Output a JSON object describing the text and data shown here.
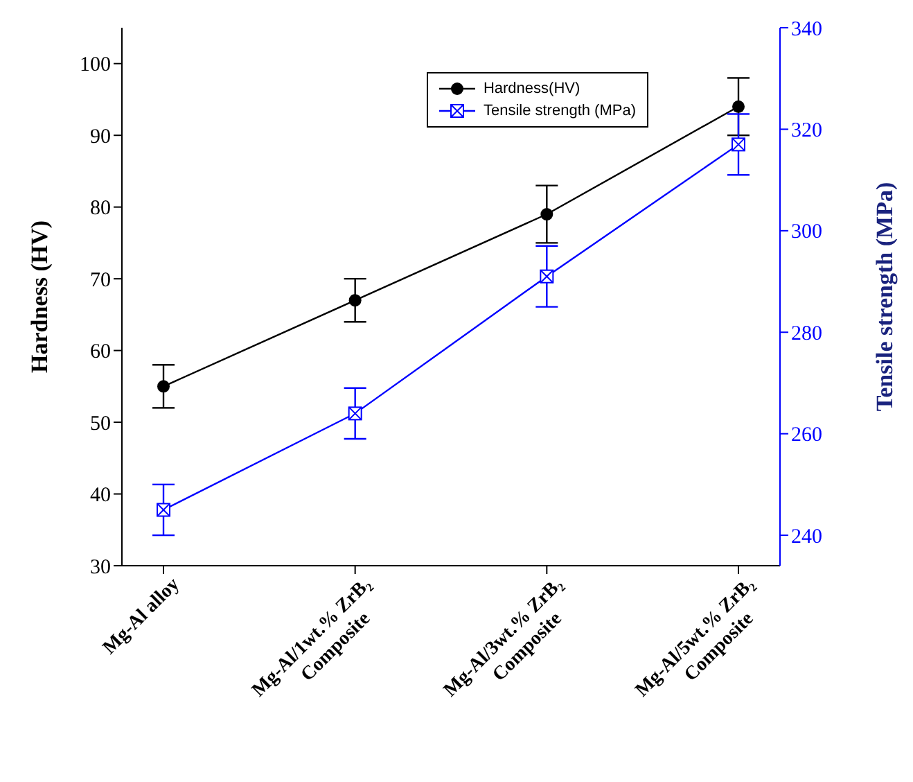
{
  "chart_data": {
    "type": "line",
    "ylabel": "Hardness (HV)",
    "y2label": "Tensile strength (MPa)",
    "categories": [
      "Mg-Al alloy",
      "Mg-Al/1wt.% ZrB₂\nComposite",
      "Mg-Al/3wt.% ZrB₂\nComposite",
      "Mg-Al/5wt.% ZrB₂\nComposite"
    ],
    "series": [
      {
        "name": "Hardness(HV)",
        "color": "#000000",
        "marker": "circle",
        "values": [
          55,
          67,
          79,
          94
        ],
        "errors": [
          3,
          3,
          4,
          4
        ]
      },
      {
        "name": "Tensile strength (MPa)",
        "color": "#0000ff",
        "marker": "square",
        "axis": "y2",
        "values": [
          245,
          264,
          291,
          317
        ],
        "errors": [
          5,
          5,
          6,
          6
        ]
      }
    ],
    "ylim": [
      30,
      105
    ],
    "yticks": [
      30,
      40,
      50,
      60,
      70,
      80,
      90,
      100
    ],
    "y2lim": [
      234,
      340
    ],
    "y2ticks": [
      240,
      260,
      280,
      300,
      320,
      340
    ],
    "legend": "top right",
    "grid": false
  }
}
